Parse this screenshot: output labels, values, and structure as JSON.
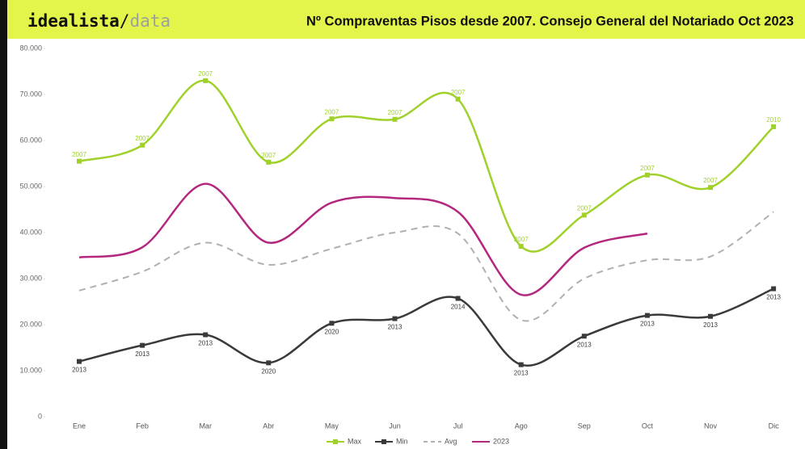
{
  "chart_data": {
    "type": "line",
    "logo": {
      "brand": "idealista",
      "sep": "/",
      "sub": "data"
    },
    "title": "Nº Compraventas Pisos desde 2007. Consejo General del Notariado Oct 2023",
    "categories": [
      "Ene",
      "Feb",
      "Mar",
      "Abr",
      "May",
      "Jun",
      "Jul",
      "Ago",
      "Sep",
      "Oct",
      "Nov",
      "Dic"
    ],
    "ylim": [
      0,
      80000
    ],
    "yticks": [
      0,
      {
        "value": 10000,
        "label": "10.000"
      },
      {
        "value": 20000,
        "label": "20.000"
      },
      {
        "value": 30000,
        "label": "30.000"
      },
      {
        "value": 40000,
        "label": "40.000"
      },
      {
        "value": 50000,
        "label": "50.000"
      },
      {
        "value": 60000,
        "label": "60.000"
      },
      {
        "value": 70000,
        "label": "70.000"
      },
      {
        "value": 80000,
        "label": "80.000"
      }
    ],
    "series": [
      {
        "name": "Max",
        "color": "#9fd12a",
        "marker": true,
        "label_side": "above",
        "values": [
          55500,
          59000,
          73000,
          55300,
          64700,
          64600,
          69000,
          37000,
          43800,
          52500,
          49800,
          63000
        ],
        "point_labels": [
          "2007",
          "2007",
          "2007",
          "2007",
          "2007",
          "2007",
          "2007",
          "2007",
          "2007",
          "2007",
          "2007",
          "2010"
        ]
      },
      {
        "name": "Min",
        "color": "#3a3a3a",
        "marker": true,
        "label_side": "below",
        "values": [
          12000,
          15500,
          17800,
          11700,
          20300,
          21300,
          25700,
          11300,
          17500,
          22000,
          21800,
          27800
        ],
        "point_labels": [
          "2013",
          "2013",
          "2013",
          "2020",
          "2020",
          "2013",
          "2014",
          "2013",
          "2013",
          "2013",
          "2013",
          "2013"
        ]
      },
      {
        "name": "Avg",
        "color": "#b0b0b0",
        "dashed": true,
        "values": [
          27400,
          31500,
          37800,
          33000,
          36500,
          40000,
          39800,
          21000,
          30000,
          34000,
          34800,
          44500
        ]
      },
      {
        "name": "2023",
        "color": "#b3277f",
        "values": [
          34600,
          36800,
          50600,
          37800,
          46500,
          47500,
          44500,
          26500,
          36700,
          39800,
          null,
          null
        ]
      }
    ]
  }
}
